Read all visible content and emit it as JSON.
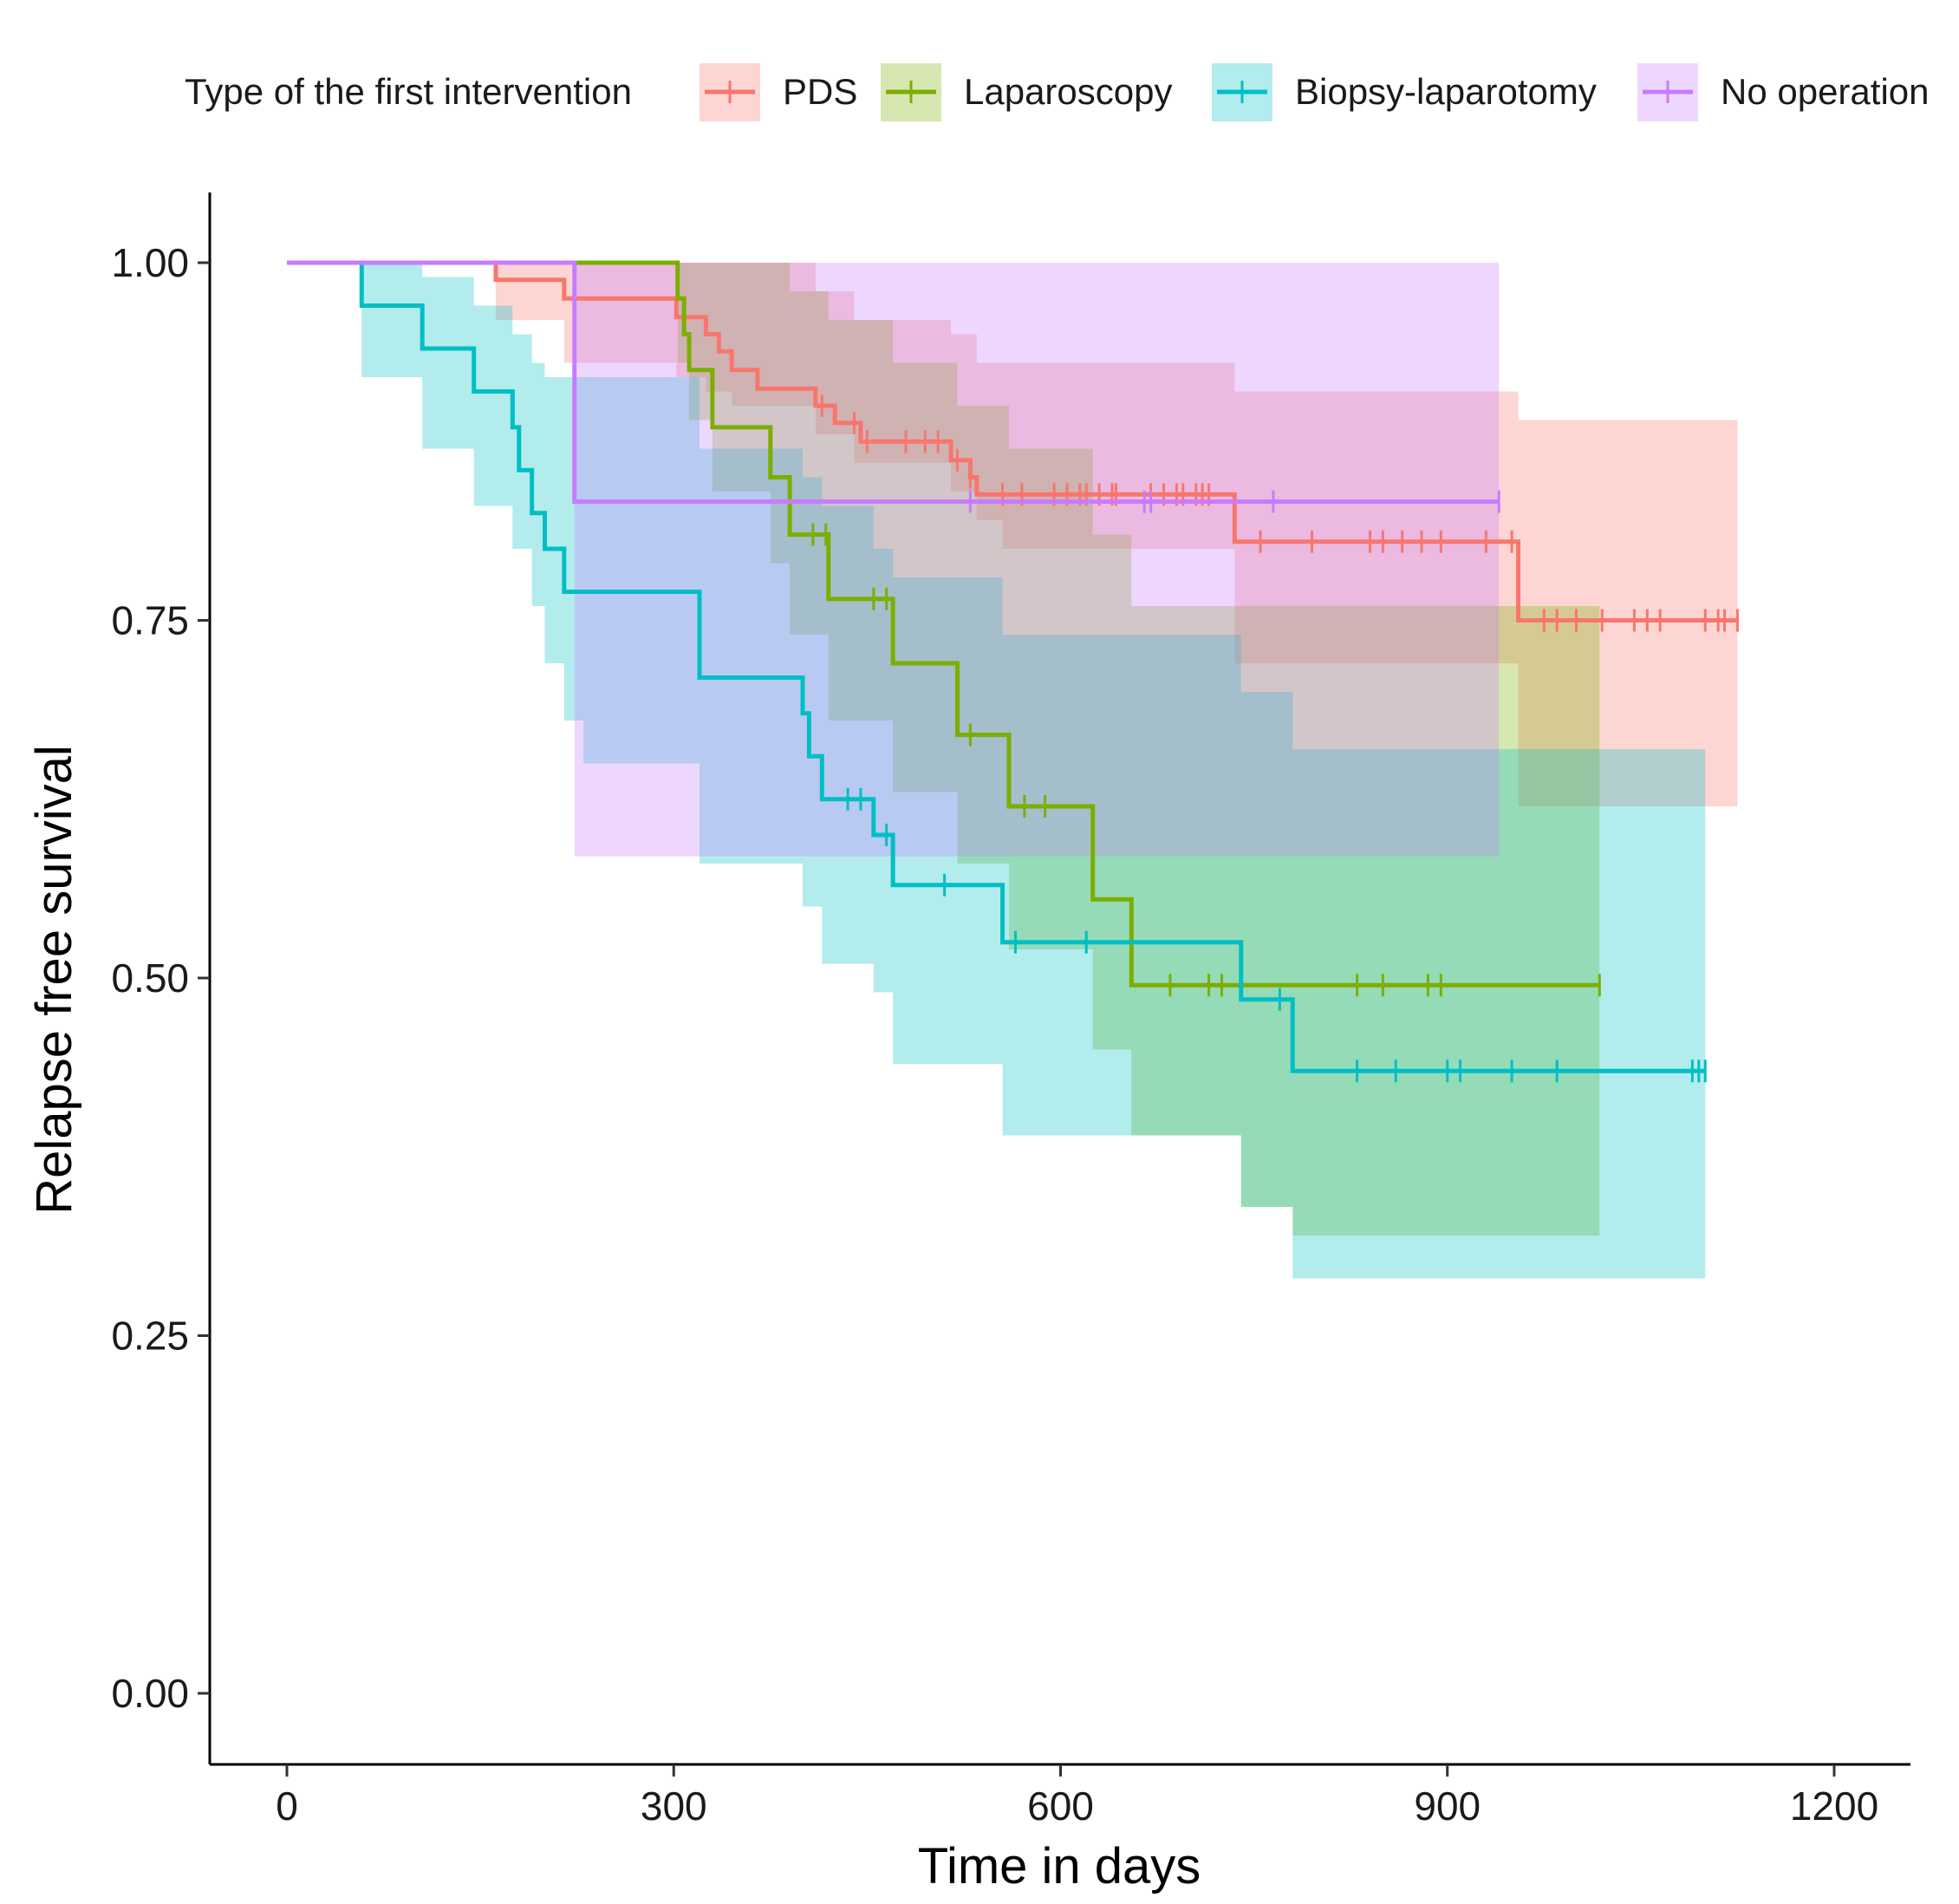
{
  "chart_data": {
    "type": "line",
    "subtype": "kaplan-meier-step",
    "title": "",
    "xlabel": "Time in days",
    "ylabel": "Relapse free survival",
    "xlim": [
      -15,
      1260
    ],
    "ylim": [
      -0.05,
      1.05
    ],
    "x_ticks": [
      0,
      300,
      600,
      900,
      1200
    ],
    "x_tick_labels": [
      "0",
      "300",
      "600",
      "900",
      "1200"
    ],
    "y_ticks": [
      0,
      0.25,
      0.5,
      0.75,
      1.0
    ],
    "y_tick_labels": [
      "0.00",
      "0.25",
      "0.50",
      "0.75",
      "1.00"
    ],
    "grid": false,
    "legend": {
      "title": "Type of the first intervention",
      "position": "top"
    },
    "series": [
      {
        "name": "PDS",
        "color": "#F8766D",
        "steps": [
          [
            0,
            1.0
          ],
          [
            162,
            0.988
          ],
          [
            215,
            0.975
          ],
          [
            302,
            0.962
          ],
          [
            325,
            0.95
          ],
          [
            335,
            0.938
          ],
          [
            345,
            0.925
          ],
          [
            365,
            0.912
          ],
          [
            410,
            0.9
          ],
          [
            425,
            0.888
          ],
          [
            445,
            0.875
          ],
          [
            515,
            0.862
          ],
          [
            530,
            0.85
          ],
          [
            535,
            0.838
          ],
          [
            735,
            0.805
          ],
          [
            955,
            0.75
          ],
          [
            1125,
            0.75
          ]
        ],
        "censored": [
          415,
          440,
          450,
          480,
          495,
          505,
          520,
          530,
          555,
          570,
          595,
          605,
          615,
          620,
          630,
          640,
          643,
          670,
          680,
          690,
          695,
          705,
          710,
          715,
          755,
          795,
          840,
          850,
          865,
          880,
          895,
          930,
          950,
          975,
          985,
          1000,
          1020,
          1045,
          1055,
          1065,
          1100,
          1110,
          1115,
          1125
        ],
        "ci_steps": [
          [
            0,
            1.0,
            1.0
          ],
          [
            162,
            1.0,
            0.96
          ],
          [
            215,
            1.0,
            0.93
          ],
          [
            302,
            1.0,
            0.92
          ],
          [
            325,
            1.0,
            0.91
          ],
          [
            345,
            1.0,
            0.9
          ],
          [
            410,
            0.98,
            0.88
          ],
          [
            440,
            0.96,
            0.86
          ],
          [
            515,
            0.95,
            0.84
          ],
          [
            535,
            0.93,
            0.82
          ],
          [
            555,
            0.93,
            0.8
          ],
          [
            735,
            0.91,
            0.72
          ],
          [
            785,
            0.91,
            0.72
          ],
          [
            955,
            0.89,
            0.62
          ],
          [
            1125,
            0.89,
            0.62
          ]
        ]
      },
      {
        "name": "Laparoscopy",
        "color": "#7CAE00",
        "steps": [
          [
            0,
            1.0
          ],
          [
            303,
            0.975
          ],
          [
            308,
            0.95
          ],
          [
            312,
            0.925
          ],
          [
            330,
            0.885
          ],
          [
            375,
            0.85
          ],
          [
            390,
            0.81
          ],
          [
            420,
            0.765
          ],
          [
            470,
            0.72
          ],
          [
            520,
            0.67
          ],
          [
            560,
            0.62
          ],
          [
            625,
            0.555
          ],
          [
            655,
            0.495
          ],
          [
            1018,
            0.495
          ]
        ],
        "censored": [
          408,
          418,
          455,
          465,
          530,
          572,
          588,
          685,
          715,
          725,
          830,
          850,
          885,
          895,
          1018
        ],
        "ci_steps": [
          [
            0,
            1.0,
            1.0
          ],
          [
            303,
            1.0,
            0.93
          ],
          [
            312,
            1.0,
            0.89
          ],
          [
            330,
            1.0,
            0.84
          ],
          [
            375,
            1.0,
            0.79
          ],
          [
            390,
            0.98,
            0.74
          ],
          [
            420,
            0.96,
            0.68
          ],
          [
            470,
            0.93,
            0.63
          ],
          [
            520,
            0.9,
            0.58
          ],
          [
            560,
            0.87,
            0.52
          ],
          [
            625,
            0.81,
            0.45
          ],
          [
            655,
            0.76,
            0.39
          ],
          [
            740,
            0.76,
            0.34
          ],
          [
            780,
            0.76,
            0.32
          ],
          [
            1018,
            0.76,
            0.32
          ]
        ]
      },
      {
        "name": "Biopsy-laparotomy",
        "color": "#00BFC4",
        "steps": [
          [
            0,
            1.0
          ],
          [
            58,
            0.97
          ],
          [
            105,
            0.94
          ],
          [
            145,
            0.91
          ],
          [
            175,
            0.885
          ],
          [
            180,
            0.855
          ],
          [
            190,
            0.825
          ],
          [
            200,
            0.8
          ],
          [
            215,
            0.77
          ],
          [
            320,
            0.71
          ],
          [
            400,
            0.685
          ],
          [
            405,
            0.655
          ],
          [
            415,
            0.625
          ],
          [
            455,
            0.6
          ],
          [
            470,
            0.565
          ],
          [
            555,
            0.525
          ],
          [
            740,
            0.485
          ],
          [
            780,
            0.435
          ],
          [
            1100,
            0.435
          ]
        ],
        "censored": [
          435,
          445,
          465,
          510,
          565,
          620,
          770,
          830,
          860,
          900,
          910,
          950,
          985,
          1090,
          1095,
          1100
        ],
        "ci_steps": [
          [
            0,
            1.0,
            1.0
          ],
          [
            58,
            1.0,
            0.92
          ],
          [
            105,
            0.99,
            0.87
          ],
          [
            145,
            0.97,
            0.83
          ],
          [
            175,
            0.95,
            0.8
          ],
          [
            190,
            0.93,
            0.76
          ],
          [
            200,
            0.92,
            0.72
          ],
          [
            215,
            0.92,
            0.68
          ],
          [
            230,
            0.92,
            0.65
          ],
          [
            320,
            0.87,
            0.58
          ],
          [
            400,
            0.85,
            0.55
          ],
          [
            415,
            0.83,
            0.51
          ],
          [
            455,
            0.8,
            0.49
          ],
          [
            470,
            0.78,
            0.44
          ],
          [
            555,
            0.74,
            0.39
          ],
          [
            740,
            0.7,
            0.34
          ],
          [
            780,
            0.66,
            0.29
          ],
          [
            1100,
            0.66,
            0.29
          ]
        ]
      },
      {
        "name": "No operation",
        "color": "#C77CFF",
        "steps": [
          [
            0,
            1.0
          ],
          [
            223,
            0.833
          ],
          [
            940,
            0.833
          ]
        ],
        "censored": [
          530,
          665,
          670,
          765,
          940
        ],
        "ci_steps": [
          [
            0,
            1.0,
            1.0
          ],
          [
            223,
            1.0,
            0.585
          ],
          [
            940,
            1.0,
            0.585
          ]
        ]
      }
    ]
  }
}
